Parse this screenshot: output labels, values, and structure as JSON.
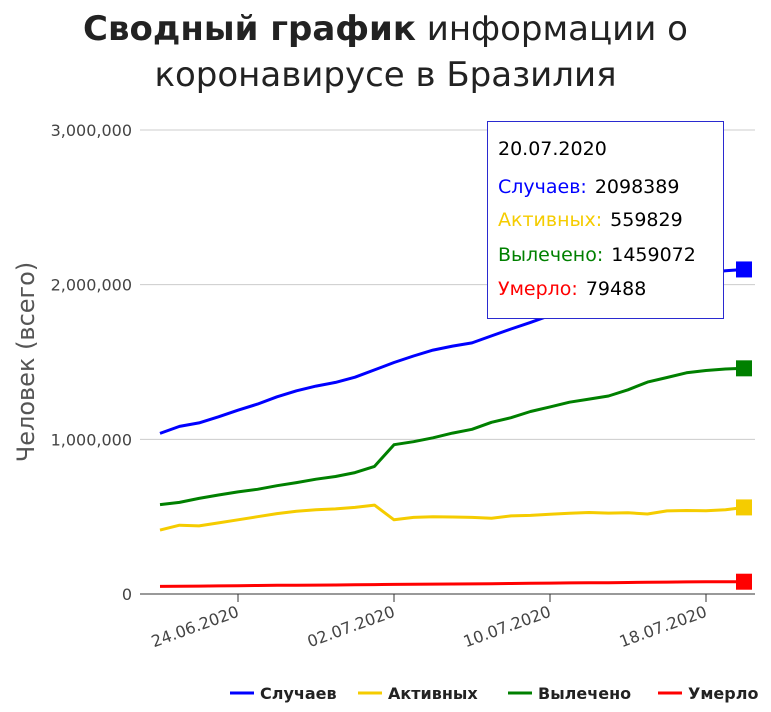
{
  "title": {
    "bold": "Сводный график",
    "rest": " информации о коронавирусе в Бразилия"
  },
  "tooltip": {
    "date": "20.07.2020",
    "rows": [
      {
        "label": "Случаев:",
        "value": "2098389",
        "color": "#0000ff"
      },
      {
        "label": "Активных:",
        "value": "559829",
        "color": "#f5cc00"
      },
      {
        "label": "Вылечено:",
        "value": "1459072",
        "color": "#008000"
      },
      {
        "label": "Умерло:",
        "value": "79488",
        "color": "#ff0000"
      }
    ]
  },
  "chart_data": {
    "type": "line",
    "ylabel": "Человек (всего)",
    "ylim": [
      0,
      3000000
    ],
    "yticks": [
      0,
      1000000,
      2000000,
      3000000
    ],
    "ytick_labels": [
      "0",
      "1,000,000",
      "2,000,000",
      "3,000,000"
    ],
    "xticks": [
      "24.06.2020",
      "02.07.2020",
      "10.07.2020",
      "18.07.2020"
    ],
    "x": [
      "20.06.2020",
      "21.06.2020",
      "22.06.2020",
      "23.06.2020",
      "24.06.2020",
      "25.06.2020",
      "26.06.2020",
      "27.06.2020",
      "28.06.2020",
      "29.06.2020",
      "30.06.2020",
      "01.07.2020",
      "02.07.2020",
      "03.07.2020",
      "04.07.2020",
      "05.07.2020",
      "06.07.2020",
      "07.07.2020",
      "08.07.2020",
      "09.07.2020",
      "10.07.2020",
      "11.07.2020",
      "12.07.2020",
      "13.07.2020",
      "14.07.2020",
      "15.07.2020",
      "16.07.2020",
      "17.07.2020",
      "18.07.2020",
      "19.07.2020",
      "20.07.2020"
    ],
    "legend_position": "bottom",
    "grid": true,
    "series": [
      {
        "name": "Случаев",
        "color": "#0000ff",
        "values": [
          1038568,
          1083341,
          1106470,
          1145906,
          1188631,
          1228114,
          1274974,
          1313667,
          1344143,
          1368195,
          1402041,
          1448753,
          1496858,
          1539081,
          1577004,
          1603055,
          1623284,
          1668589,
          1713160,
          1755779,
          1800827,
          1839850,
          1864681,
          1884967,
          1926824,
          1966748,
          2012151,
          2046328,
          2074860,
          2090000,
          2098389
        ]
      },
      {
        "name": "Активных",
        "color": "#f5cc00",
        "values": [
          413000,
          445000,
          440000,
          460000,
          480000,
          500000,
          520000,
          535000,
          545000,
          550000,
          560000,
          575000,
          480000,
          495000,
          500000,
          498000,
          495000,
          490000,
          505000,
          508000,
          515000,
          522000,
          527000,
          523000,
          525000,
          517000,
          537000,
          540000,
          538000,
          545000,
          559829
        ]
      },
      {
        "name": "Вылечено",
        "color": "#008000",
        "values": [
          578000,
          592000,
          618000,
          640000,
          660000,
          677000,
          700000,
          720000,
          742000,
          760000,
          785000,
          825000,
          965000,
          985000,
          1010000,
          1040000,
          1065000,
          1110000,
          1140000,
          1180000,
          1210000,
          1240000,
          1260000,
          1280000,
          1320000,
          1370000,
          1400000,
          1430000,
          1445000,
          1455000,
          1459072
        ]
      },
      {
        "name": "Умерло",
        "color": "#ff0000",
        "values": [
          49090,
          50617,
          51271,
          52645,
          53830,
          55054,
          56109,
          57070,
          57622,
          58314,
          59594,
          60632,
          61884,
          63174,
          64265,
          64867,
          65487,
          66741,
          67964,
          69184,
          70398,
          71469,
          72100,
          72833,
          74133,
          75366,
          76688,
          77932,
          78772,
          79200,
          79488
        ]
      }
    ]
  }
}
